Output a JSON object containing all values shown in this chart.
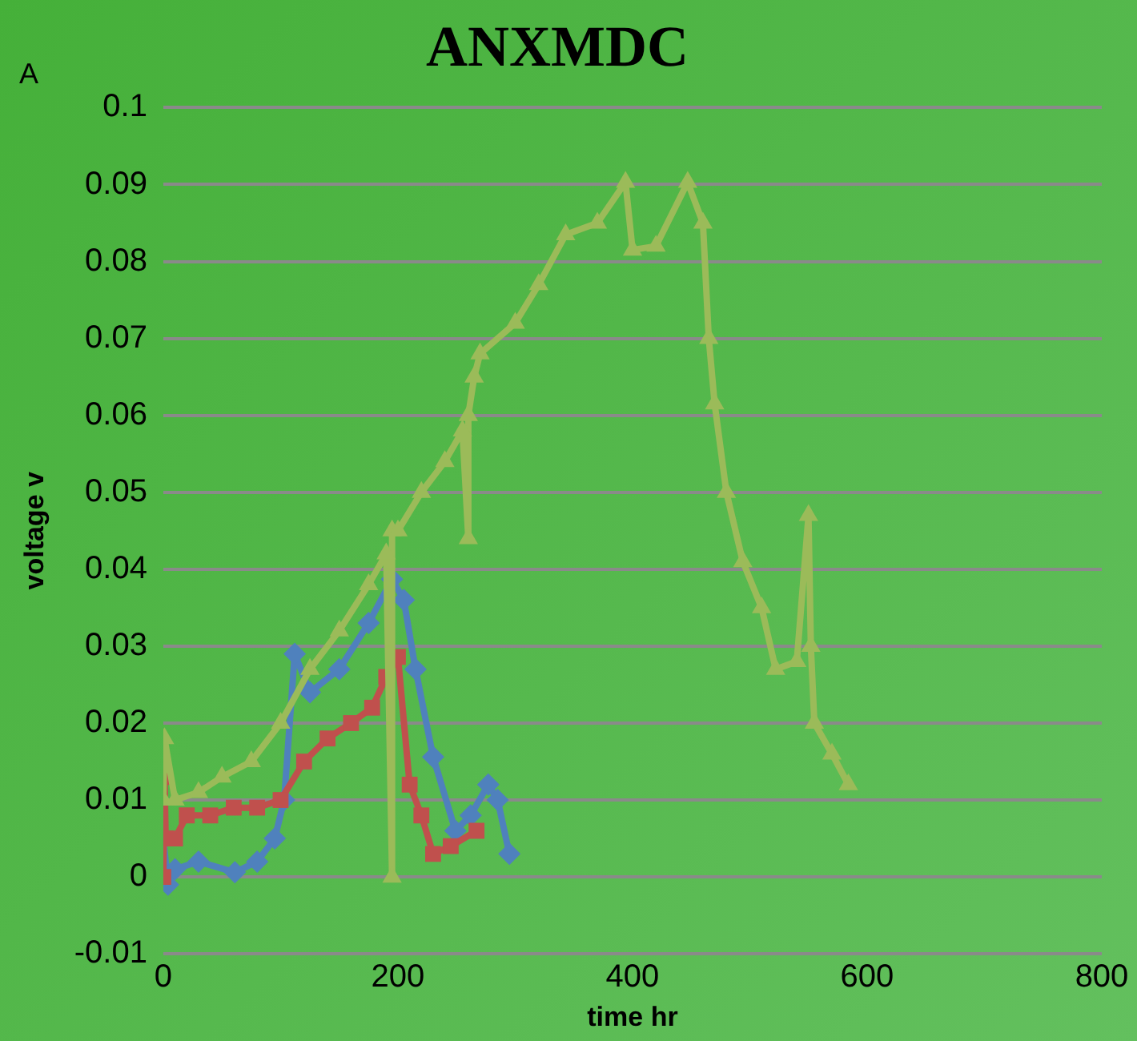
{
  "chart_data": {
    "type": "line",
    "title": "ANXMDC",
    "xlabel": "time hr",
    "ylabel": "voltage v",
    "annotations": [
      "A"
    ],
    "xlim": [
      0,
      800
    ],
    "xticks": [
      0,
      200,
      400,
      600,
      800
    ],
    "ylim": [
      -0.01,
      0.1
    ],
    "yticks": [
      -0.01,
      0,
      0.01,
      0.02,
      0.03,
      0.04,
      0.05,
      0.06,
      0.07,
      0.08,
      0.09,
      0.1
    ],
    "grid": "y",
    "legend": false,
    "series": [
      {
        "color": "#4f81bd",
        "marker": "diamond",
        "x": [
          0,
          4,
          10,
          30,
          61,
          80,
          95,
          103,
          112,
          125,
          150,
          175,
          195,
          205,
          215,
          230,
          249,
          262,
          277,
          285,
          295
        ],
        "values": [
          0.005,
          -0.001,
          0.001,
          0.002,
          0.0006,
          0.002,
          0.005,
          0.01,
          0.029,
          0.024,
          0.027,
          0.033,
          0.0387,
          0.036,
          0.027,
          0.0156,
          0.006,
          0.008,
          0.012,
          0.01,
          0.003
        ]
      },
      {
        "color": "#c0504d",
        "marker": "square",
        "x": [
          0,
          1,
          2,
          10,
          20,
          40,
          60,
          80,
          100,
          120,
          140,
          160,
          178,
          190,
          200,
          210,
          220,
          230,
          245,
          267
        ],
        "values": [
          0,
          0.013,
          0.005,
          0.005,
          0.008,
          0.008,
          0.009,
          0.009,
          0.01,
          0.015,
          0.018,
          0.02,
          0.022,
          0.026,
          0.0286,
          0.012,
          0.008,
          0.003,
          0.004,
          0.006
        ]
      },
      {
        "color": "#9bbb59",
        "marker": "triangle",
        "x": [
          0,
          1,
          10,
          30,
          50,
          75,
          100,
          125,
          150,
          175,
          190,
          195,
          195,
          200,
          220,
          240,
          255,
          260,
          260,
          265,
          270,
          300,
          320,
          343,
          370,
          394,
          400,
          420,
          447,
          460,
          465,
          470,
          480,
          494,
          510,
          522,
          540,
          550,
          552,
          555,
          570,
          584
        ],
        "values": [
          0.01,
          0.018,
          0.01,
          0.011,
          0.013,
          0.015,
          0.02,
          0.027,
          0.032,
          0.038,
          0.042,
          0.0,
          0.045,
          0.045,
          0.05,
          0.054,
          0.058,
          0.044,
          0.06,
          0.065,
          0.068,
          0.072,
          0.077,
          0.0835,
          0.085,
          0.0903,
          0.0815,
          0.082,
          0.0903,
          0.085,
          0.07,
          0.0615,
          0.05,
          0.041,
          0.035,
          0.027,
          0.028,
          0.047,
          0.03,
          0.02,
          0.016,
          0.012
        ]
      }
    ]
  }
}
